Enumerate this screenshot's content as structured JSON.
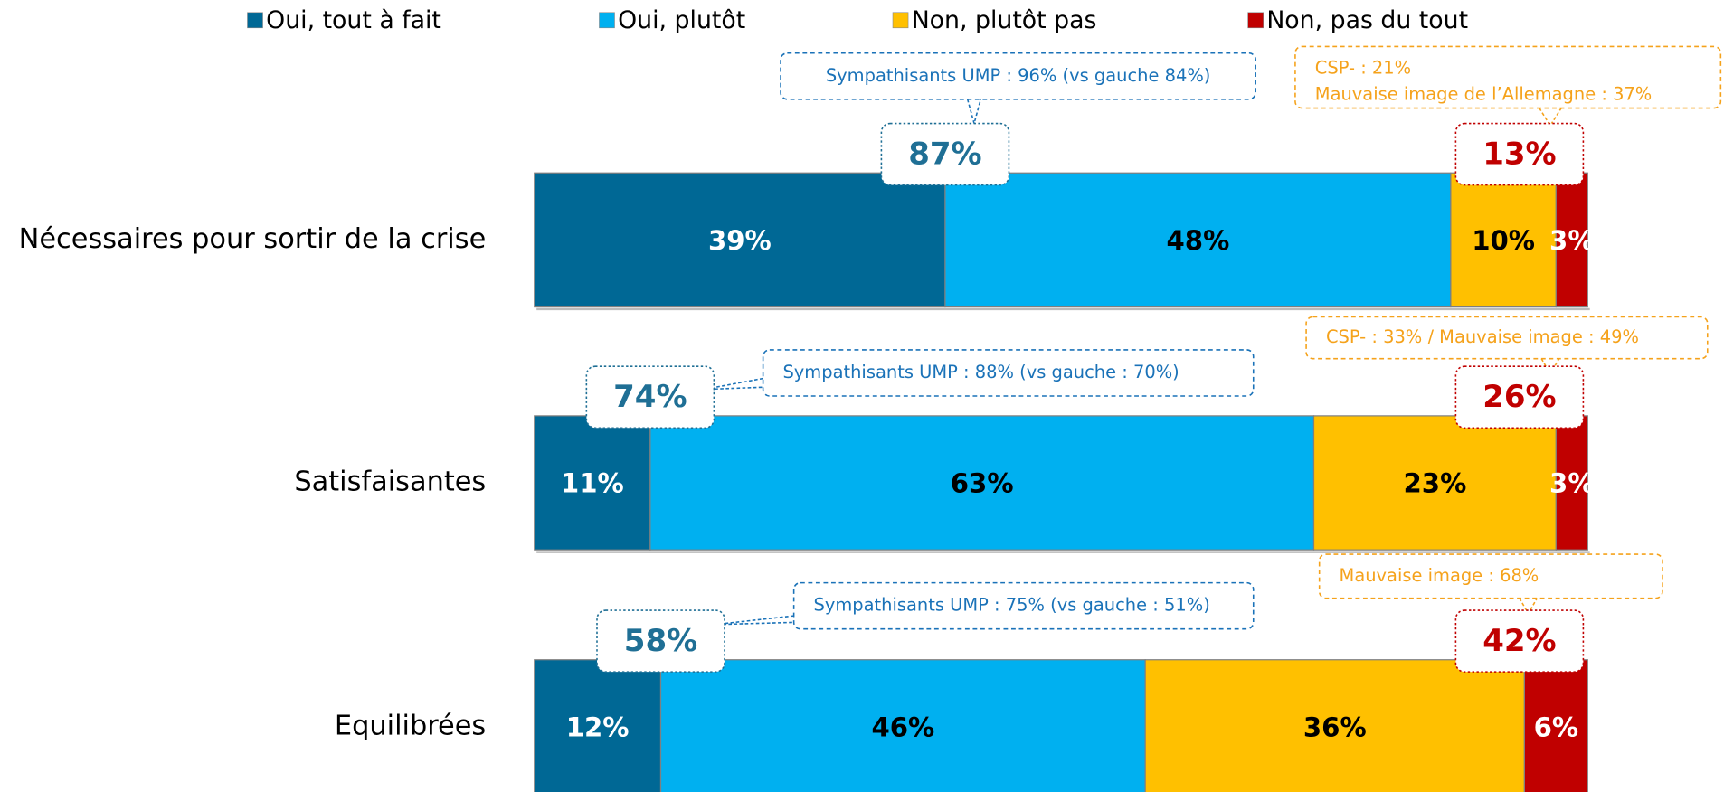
{
  "chart_data": {
    "type": "stacked-bar-horizontal",
    "categories": [
      "Nécessaires pour sortir de la crise",
      "Satisfaisantes",
      "Equilibrées"
    ],
    "series": [
      {
        "name": "Oui, tout à fait",
        "color": "#006895",
        "values": [
          39,
          11,
          12
        ],
        "value_labels": [
          "39%",
          "11%",
          "12%"
        ]
      },
      {
        "name": "Oui, plutôt",
        "color": "#00b0f0",
        "values": [
          48,
          63,
          46
        ],
        "value_labels": [
          "48%",
          "63%",
          "46%"
        ]
      },
      {
        "name": "Non, plutôt pas",
        "color": "#ffc000",
        "values": [
          10,
          23,
          36
        ],
        "value_labels": [
          "10%",
          "23%",
          "36%"
        ]
      },
      {
        "name": "Non, pas du tout",
        "color": "#c00000",
        "values": [
          3,
          3,
          6
        ],
        "value_labels": [
          "3%",
          "3%",
          "6%"
        ]
      }
    ],
    "yes_totals": {
      "color": "#1f6f95",
      "values": [
        87,
        74,
        58
      ],
      "value_labels": [
        "87%",
        "74%",
        "58%"
      ]
    },
    "no_totals": {
      "color": "#c00000",
      "values": [
        13,
        26,
        42
      ],
      "value_labels": [
        "13%",
        "26%",
        "42%"
      ]
    },
    "yes_notes": {
      "color": "#1a72b8",
      "texts": [
        "Sympathisants UMP : 96% (vs gauche 84%)",
        "Sympathisants UMP : 88% (vs gauche : 70%)",
        "Sympathisants UMP : 75% (vs gauche : 51%)"
      ]
    },
    "no_notes": {
      "color": "#f5a21b",
      "texts": [
        [
          "CSP- : 21%",
          "Mauvaise image de l’Allemagne : 37%"
        ],
        [
          "CSP- : 33% / Mauvaise image : 49%"
        ],
        [
          "Mauvaise image : 68%"
        ]
      ]
    },
    "legend": "top"
  }
}
